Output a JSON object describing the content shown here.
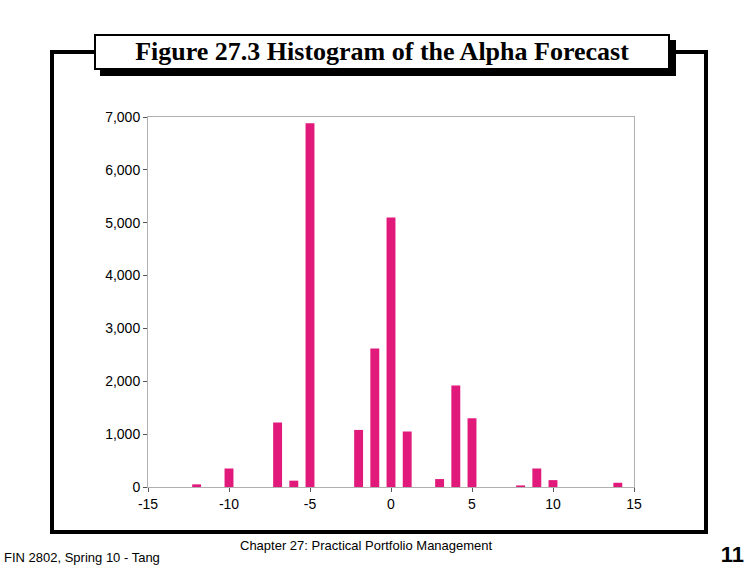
{
  "slide": {
    "title": "Figure 27.3 Histogram of the Alpha Forecast",
    "footer_left": "FIN 2802, Spring 10 - Tang",
    "footer_center": "Chapter 27: Practical Portfolio Management",
    "page": "11"
  },
  "chart_data": {
    "type": "bar",
    "x": [
      -12,
      -10,
      -7,
      -6,
      -5,
      -2,
      -1,
      0,
      1,
      3,
      4,
      5,
      8,
      9,
      10,
      14
    ],
    "values": [
      50,
      350,
      1220,
      120,
      6880,
      1080,
      2620,
      5100,
      1050,
      150,
      1920,
      1300,
      30,
      350,
      130,
      80
    ],
    "color": "#e0197a",
    "xlim": [
      -15,
      15
    ],
    "xticks": [
      -15,
      -10,
      -5,
      0,
      5,
      10,
      15
    ],
    "ylim": [
      0,
      7000
    ],
    "yticks": [
      0,
      {
        "value": 1000,
        "label": "1,000"
      },
      {
        "value": 2000,
        "label": "2,000"
      },
      {
        "value": 3000,
        "label": "3,000"
      },
      {
        "value": 4000,
        "label": "4,000"
      },
      {
        "value": 5000,
        "label": "5,000"
      },
      {
        "value": 6000,
        "label": "6,000"
      },
      {
        "value": 7000,
        "label": "7,000"
      }
    ],
    "grid": false
  }
}
